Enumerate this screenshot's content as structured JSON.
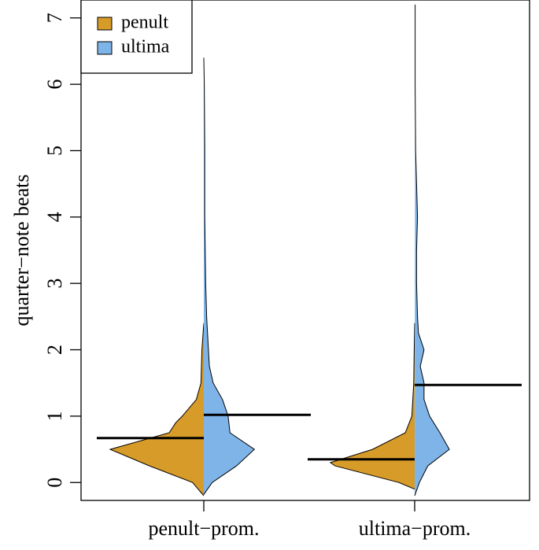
{
  "chart_data": {
    "type": "violin",
    "ylabel": "quarter−note beats",
    "categories": [
      "penult−prom.",
      "ultima−prom."
    ],
    "ylim": [
      -0.27,
      7.27
    ],
    "yticks": [
      0,
      1,
      2,
      3,
      4,
      5,
      6,
      7
    ],
    "legend": "top-left",
    "series": [
      {
        "name": "penult",
        "color": "#d69b29",
        "side": "left",
        "profiles": [
          {
            "mean": 0.67,
            "y": [
              -0.2,
              0,
              0.25,
              0.5,
              0.75,
              0.9,
              1,
              1.25,
              1.5,
              2,
              2.4
            ],
            "density": [
              0,
              0.12,
              0.58,
              1.0,
              0.37,
              0.3,
              0.23,
              0.08,
              0.03,
              0.02,
              0
            ]
          },
          {
            "mean": 0.35,
            "y": [
              -0.1,
              0,
              0.25,
              0.3,
              0.5,
              0.75,
              1,
              1.5,
              2,
              2.4
            ],
            "density": [
              0,
              0.17,
              0.85,
              0.9,
              0.45,
              0.1,
              0.03,
              0.01,
              0.005,
              0
            ]
          }
        ]
      },
      {
        "name": "ultima",
        "color": "#7eb4e8",
        "side": "right",
        "profiles": [
          {
            "mean": 1.02,
            "y": [
              -0.18,
              0,
              0.25,
              0.5,
              0.75,
              1,
              1.25,
              1.5,
              1.75,
              2,
              2.5,
              3,
              4,
              5,
              6,
              6.4
            ],
            "density": [
              0,
              0.09,
              0.35,
              0.54,
              0.28,
              0.26,
              0.2,
              0.1,
              0.06,
              0.05,
              0.03,
              0.02,
              0.01,
              0.01,
              0.005,
              0
            ]
          },
          {
            "mean": 1.47,
            "y": [
              -0.2,
              0,
              0.25,
              0.5,
              0.75,
              1,
              1.25,
              1.5,
              1.75,
              2,
              2.25,
              2.5,
              3,
              3.5,
              4,
              5,
              6,
              7.2
            ],
            "density": [
              0,
              0.05,
              0.14,
              0.37,
              0.27,
              0.16,
              0.1,
              0.1,
              0.06,
              0.1,
              0.04,
              0.03,
              0.02,
              0.02,
              0.03,
              0.01,
              0.005,
              0.005
            ]
          }
        ]
      }
    ]
  }
}
